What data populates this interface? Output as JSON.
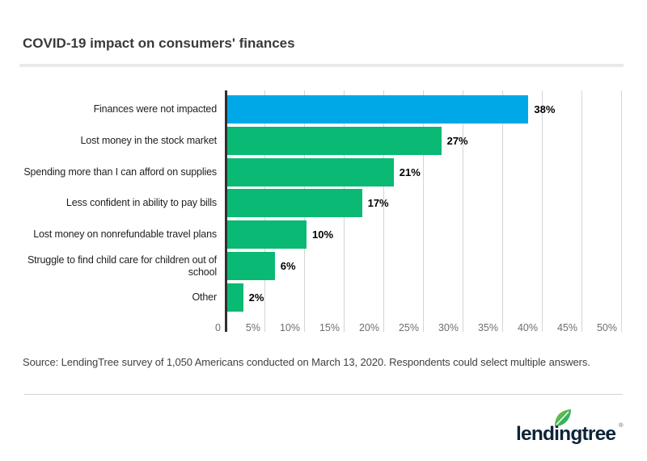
{
  "title": "COVID-19 impact on consumers' finances",
  "source": "Source: LendingTree survey of 1,050 Americans conducted on March 13, 2020. Respondents could select multiple answers.",
  "logo": {
    "wordmark": "lendingtree",
    "registered": "®",
    "leaf_icon": "leaf",
    "navy": "#0d2438",
    "leaf_green_light": "#8dc63f",
    "leaf_green_dark": "#00a76b"
  },
  "colors": {
    "highlight_blue": "#00a8e8",
    "bar_green": "#0ab973",
    "axis": "#2f2f2f",
    "gridline": "#d4d4d4",
    "divider": "#e9e9e9"
  },
  "chart_data": {
    "type": "bar",
    "orientation": "horizontal",
    "title": "COVID-19 impact on consumers' finances",
    "categories": [
      "Finances were not impacted",
      "Lost money in the stock market",
      "Spending more than I can afford on supplies",
      "Less confident in ability to pay bills",
      "Lost money on nonrefundable travel plans",
      "Struggle to find child care for children out of\nschool",
      "Other"
    ],
    "values": [
      38,
      27,
      21,
      17,
      10,
      6,
      2
    ],
    "value_labels": [
      "38%",
      "27%",
      "21%",
      "17%",
      "10%",
      "6%",
      "2%"
    ],
    "bar_colors": [
      "#00a8e8",
      "#0ab973",
      "#0ab973",
      "#0ab973",
      "#0ab973",
      "#0ab973",
      "#0ab973"
    ],
    "x_ticks": [
      {
        "label": "0",
        "value": 0
      },
      {
        "label": "5%",
        "value": 5
      },
      {
        "label": "10%",
        "value": 10
      },
      {
        "label": "15%",
        "value": 15
      },
      {
        "label": "20%",
        "value": 20
      },
      {
        "label": "25%",
        "value": 25
      },
      {
        "label": "30%",
        "value": 30
      },
      {
        "label": "35%",
        "value": 35
      },
      {
        "label": "40%",
        "value": 40
      },
      {
        "label": "45%",
        "value": 45
      },
      {
        "label": "50%",
        "value": 50
      }
    ],
    "xlim": [
      0,
      50
    ],
    "unit": "%",
    "grid": true,
    "legend": false,
    "xlabel": "",
    "ylabel": ""
  }
}
